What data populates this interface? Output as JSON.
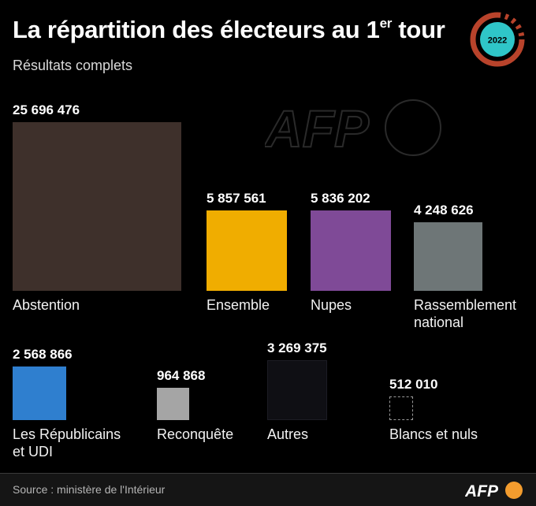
{
  "header": {
    "title_main": "La répartition des électeurs au 1",
    "title_sup": "er",
    "title_end": " tour",
    "subtitle": "Résultats complets",
    "badge_year": "2022"
  },
  "watermark_text": "AFP",
  "footer": {
    "source": "Source : ministère de l'Intérieur",
    "logo_text": "AFP"
  },
  "colors": {
    "abstention": "#3e302b",
    "ensemble": "#f0ad00",
    "nupes": "#7f4a97",
    "rn": "#6e7677",
    "lr_udi": "#2f7fcf",
    "reconquete": "#a5a5a5",
    "autres": "#0f0f14",
    "blancs": "#000000",
    "badge_ring": "#b8432b",
    "badge_fill": "#2fc6c8",
    "logo_circle": "#f39c2e"
  },
  "chart_data": {
    "type": "proportional-area",
    "title": "La répartition des électeurs au 1er tour",
    "subtitle": "Résultats complets",
    "categories": [
      "Abstention",
      "Ensemble",
      "Nupes",
      "Rassemblement national",
      "Les Républicains et UDI",
      "Reconquête",
      "Autres",
      "Blancs et nuls"
    ],
    "values": [
      25696476,
      5857561,
      5836202,
      4248626,
      2568866,
      964868,
      3269375,
      512010
    ],
    "value_labels": [
      "25 696 476",
      "5 857 561",
      "5 836 202",
      "4 248 626",
      "2 568 866",
      "964 868",
      "3 269 375",
      "512 010"
    ],
    "labels": [
      [
        "Abstention"
      ],
      [
        "Ensemble"
      ],
      [
        "Nupes"
      ],
      [
        "Rassemblement",
        "national"
      ],
      [
        "Les Républicains",
        "et UDI"
      ],
      [
        "Reconquête"
      ],
      [
        "Autres"
      ],
      [
        "Blancs et nuls"
      ]
    ]
  }
}
